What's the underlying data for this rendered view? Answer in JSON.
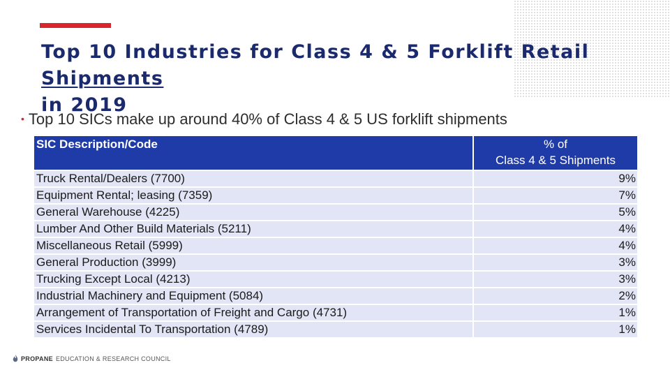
{
  "slide": {
    "title_part1": "Top 10 Industries for Class 4 & 5 Forklift Retail ",
    "title_underlined": "Shipments",
    "title_line2": "in 2019",
    "bullet": "Top 10 SICs make up around 40% of Class 4 & 5 US forklift shipments"
  },
  "table": {
    "header_description": "SIC Description/Code",
    "header_pct_line1": "% of",
    "header_pct_line2": "Class 4 & 5 Shipments",
    "rows": [
      {
        "description": "Truck Rental/Dealers (7700)",
        "pct": "9%"
      },
      {
        "description": "Equipment Rental; leasing (7359)",
        "pct": "7%"
      },
      {
        "description": "General Warehouse (4225)",
        "pct": "5%"
      },
      {
        "description": "Lumber And Other Build Materials (5211)",
        "pct": "4%"
      },
      {
        "description": "Miscellaneous Retail (5999)",
        "pct": "4%"
      },
      {
        "description": "General Production (3999)",
        "pct": "3%"
      },
      {
        "description": "Trucking Except Local (4213)",
        "pct": "3%"
      },
      {
        "description": "Industrial Machinery and Equipment (5084)",
        "pct": "2%"
      },
      {
        "description": "Arrangement of Transportation of Freight and Cargo (4731)",
        "pct": "1%"
      },
      {
        "description": "Services Incidental To Transportation (4789)",
        "pct": "1%"
      }
    ]
  },
  "footer": {
    "brand": "PROPANE",
    "org": "EDUCATION & RESEARCH COUNCIL"
  },
  "colors": {
    "accent_red": "#d9262c",
    "title_navy": "#1a2a6c",
    "header_blue": "#1f3ba8",
    "row_fill": "#e2e5f5"
  },
  "icons": [
    "flame-logo-icon"
  ]
}
